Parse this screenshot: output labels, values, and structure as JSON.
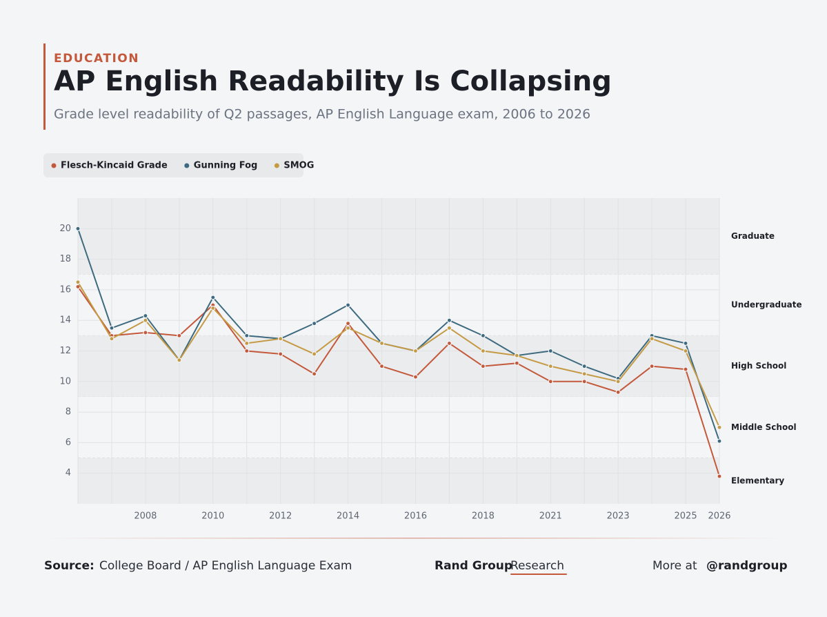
{
  "chart_data": {
    "type": "line",
    "kicker": "EDUCATION",
    "title": "AP English Readability Is Collapsing",
    "subtitle": "Grade level readability of Q2 passages, AP English Language exam, 2006 to 2026",
    "categories": [
      null,
      null,
      "2008",
      null,
      "2010",
      null,
      "2012",
      null,
      "2014",
      null,
      "2016",
      null,
      "2018",
      null,
      "2021",
      null,
      "2023",
      null,
      "2025",
      "2026"
    ],
    "series": [
      {
        "name": "Flesch-Kincaid Grade",
        "color": "#c4583a",
        "values": [
          16.2,
          13.0,
          13.2,
          13.0,
          15.0,
          12.0,
          11.8,
          10.5,
          13.8,
          11.0,
          10.3,
          12.5,
          11.0,
          11.2,
          10.0,
          10.0,
          9.3,
          11.0,
          10.8,
          3.8
        ]
      },
      {
        "name": "Gunning Fog",
        "color": "#3d6a7f",
        "values": [
          20.0,
          13.5,
          14.3,
          11.4,
          15.5,
          13.0,
          12.8,
          13.8,
          15.0,
          12.5,
          12.0,
          14.0,
          13.0,
          11.7,
          12.0,
          11.0,
          10.2,
          13.0,
          12.5,
          6.1
        ]
      },
      {
        "name": "SMOG",
        "color": "#c49a45",
        "values": [
          16.5,
          12.8,
          14.0,
          11.4,
          14.8,
          12.5,
          12.8,
          11.8,
          13.5,
          12.5,
          12.0,
          13.5,
          12.0,
          11.7,
          11.0,
          10.5,
          10.0,
          12.8,
          12.0,
          7.0
        ]
      }
    ],
    "ylim": [
      2,
      22
    ],
    "yticks": [
      4,
      6,
      8,
      10,
      12,
      14,
      16,
      18,
      20
    ],
    "grid": true,
    "bands": [
      {
        "label": "Graduate",
        "from": 17,
        "to": 22,
        "shaded": true
      },
      {
        "label": "Undergraduate",
        "from": 13,
        "to": 17,
        "shaded": false
      },
      {
        "label": "High School",
        "from": 9,
        "to": 13,
        "shaded": true
      },
      {
        "label": "Middle School",
        "from": 5,
        "to": 9,
        "shaded": false
      },
      {
        "label": "Elementary",
        "from": 2,
        "to": 5,
        "shaded": true
      }
    ],
    "source_label": "Source:",
    "source": "College Board / AP English Language Exam",
    "brand": "Rand Group",
    "brand_suffix": "Research",
    "more_label": "More at",
    "handle": "@randgroup"
  }
}
